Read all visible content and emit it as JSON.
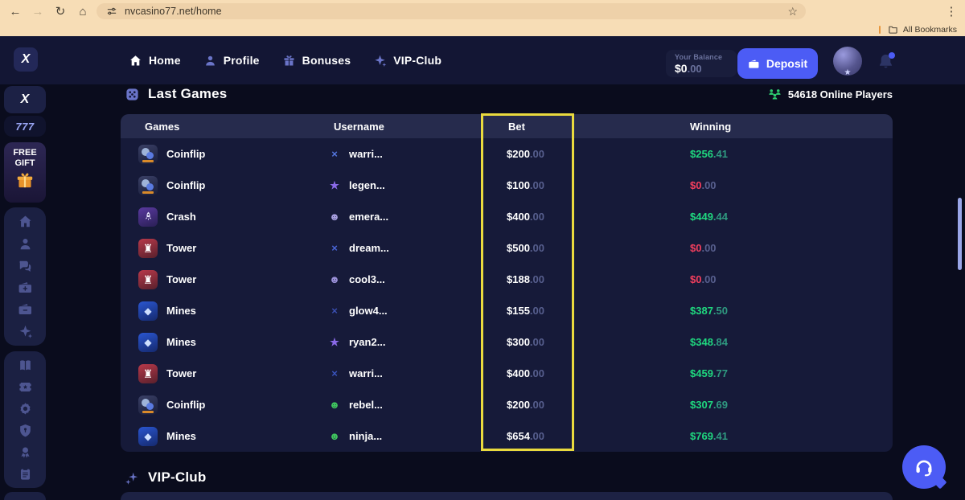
{
  "colors": {
    "accent": "#4c5cf5",
    "green": "#1fd87f",
    "red": "#f43f5e",
    "highlight": "#e9da3e"
  },
  "browser": {
    "url": "nvcasino77.net/home",
    "bookmarks_label": "All Bookmarks",
    "icons": {
      "back": "←",
      "forward": "→",
      "refresh": "↻",
      "home": "⌂",
      "bookmark_star": "☆",
      "menu": "⋮"
    }
  },
  "header": {
    "logo": "X",
    "nav": [
      {
        "label": "Home",
        "icon": "home",
        "active": true
      },
      {
        "label": "Profile",
        "icon": "person",
        "active": false
      },
      {
        "label": "Bonuses",
        "icon": "gift",
        "active": false
      },
      {
        "label": "VIP-Club",
        "icon": "sparkle",
        "active": false
      }
    ],
    "balance": {
      "label": "Your Balance",
      "whole": "$0",
      "cents": ".00"
    },
    "deposit_label": "Deposit"
  },
  "sidebar": {
    "logo": "X",
    "casino_logo": "777",
    "free_gift": {
      "line1": "FREE",
      "line2": "GIFT"
    },
    "group1": [
      "home",
      "person",
      "chat",
      "wallet-plus",
      "wallet-minus",
      "sparkle"
    ],
    "group2": [
      "book",
      "ticket",
      "badge",
      "shield",
      "medal",
      "clipboard"
    ]
  },
  "main": {
    "section_title": "Last Games",
    "online_players": "54618 Online Players",
    "table": {
      "headers": [
        "Games",
        "Username",
        "Bet",
        "Winning"
      ],
      "rows": [
        {
          "game": "Coinflip",
          "icon": "coinflip",
          "username": "warri...",
          "avatar_glyph": "×",
          "avatar_color": "#5577e0",
          "bet_whole": "$200",
          "bet_cents": ".00",
          "win_whole": "$256",
          "win_cents": ".41",
          "result": "win"
        },
        {
          "game": "Coinflip",
          "icon": "coinflip",
          "username": "legen...",
          "avatar_glyph": "★",
          "avatar_color": "#8a6ae8",
          "bet_whole": "$100",
          "bet_cents": ".00",
          "win_whole": "$0",
          "win_cents": ".00",
          "result": "loss"
        },
        {
          "game": "Crash",
          "icon": "crash",
          "username": "emera...",
          "avatar_glyph": "☻",
          "avatar_color": "#a89fe0",
          "bet_whole": "$400",
          "bet_cents": ".00",
          "win_whole": "$449",
          "win_cents": ".44",
          "result": "win"
        },
        {
          "game": "Tower",
          "icon": "tower",
          "username": "dream...",
          "avatar_glyph": "×",
          "avatar_color": "#4a66d8",
          "bet_whole": "$500",
          "bet_cents": ".00",
          "win_whole": "$0",
          "win_cents": ".00",
          "result": "loss"
        },
        {
          "game": "Tower",
          "icon": "tower",
          "username": "cool3...",
          "avatar_glyph": "☻",
          "avatar_color": "#9a90d8",
          "bet_whole": "$188",
          "bet_cents": ".00",
          "win_whole": "$0",
          "win_cents": ".00",
          "result": "loss"
        },
        {
          "game": "Mines",
          "icon": "mines",
          "username": "glow4...",
          "avatar_glyph": "×",
          "avatar_color": "#3a4fb0",
          "bet_whole": "$155",
          "bet_cents": ".00",
          "win_whole": "$387",
          "win_cents": ".50",
          "result": "win"
        },
        {
          "game": "Mines",
          "icon": "mines",
          "username": "ryan2...",
          "avatar_glyph": "★",
          "avatar_color": "#8a6ae8",
          "bet_whole": "$300",
          "bet_cents": ".00",
          "win_whole": "$348",
          "win_cents": ".84",
          "result": "win"
        },
        {
          "game": "Tower",
          "icon": "tower",
          "username": "warri...",
          "avatar_glyph": "×",
          "avatar_color": "#3a55c0",
          "bet_whole": "$400",
          "bet_cents": ".00",
          "win_whole": "$459",
          "win_cents": ".77",
          "result": "win"
        },
        {
          "game": "Coinflip",
          "icon": "coinflip",
          "username": "rebel...",
          "avatar_glyph": "☻",
          "avatar_color": "#3fc45e",
          "bet_whole": "$200",
          "bet_cents": ".00",
          "win_whole": "$307",
          "win_cents": ".69",
          "result": "win"
        },
        {
          "game": "Mines",
          "icon": "mines",
          "username": "ninja...",
          "avatar_glyph": "☻",
          "avatar_color": "#3fc45e",
          "bet_whole": "$654",
          "bet_cents": ".00",
          "win_whole": "$769",
          "win_cents": ".41",
          "result": "win"
        }
      ]
    },
    "vip_title": "VIP-Club"
  }
}
